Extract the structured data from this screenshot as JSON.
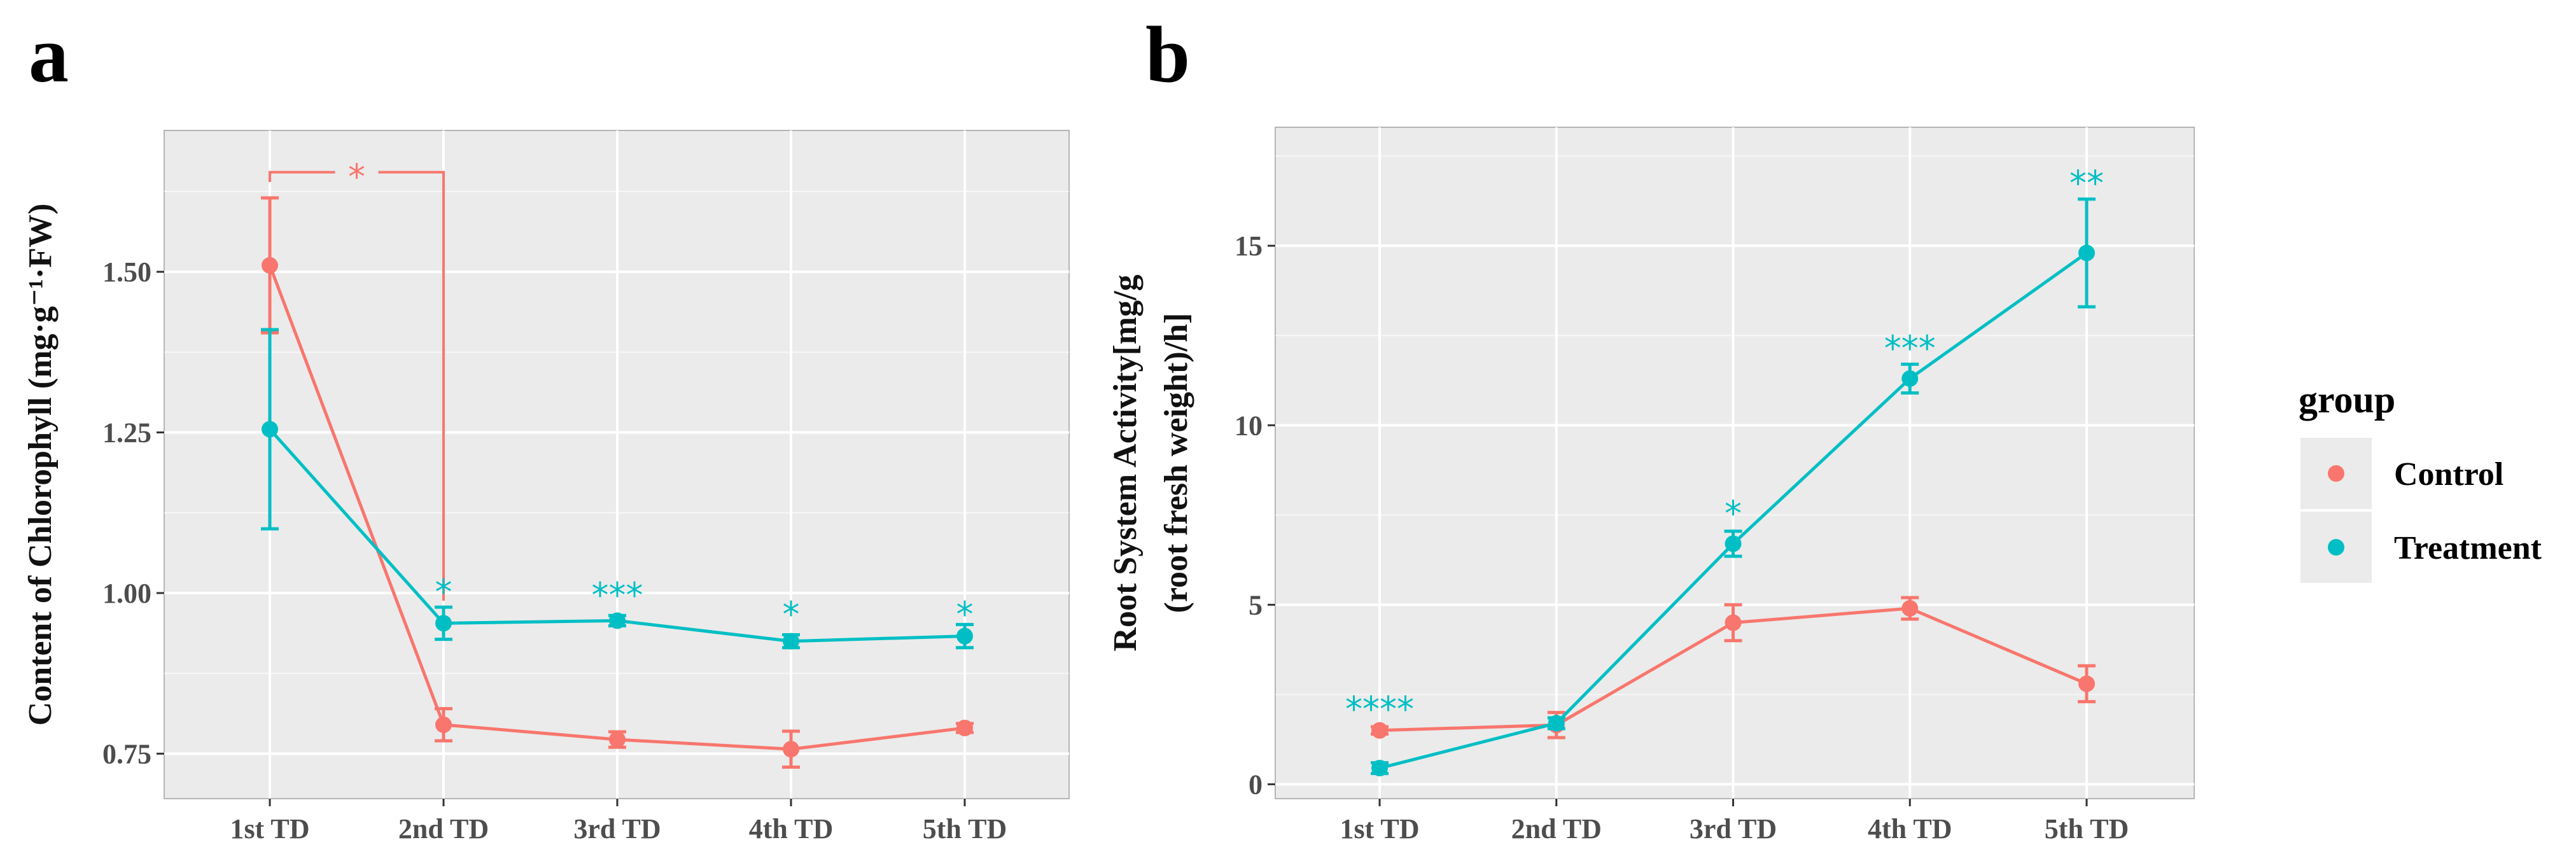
{
  "colors": {
    "control": "#F8766D",
    "treatment": "#00BFC4",
    "panel_bg": "#EBEBEB",
    "grid_major": "#FFFFFF",
    "tick_text": "#4D4D4D"
  },
  "legend": {
    "title": "group",
    "items": [
      {
        "label": "Control",
        "color": "#F8766D"
      },
      {
        "label": "Treatment",
        "color": "#00BFC4"
      }
    ]
  },
  "chart_data": [
    {
      "panel_label": "a",
      "type": "line",
      "categories": [
        "1st TD",
        "2nd TD",
        "3rd TD",
        "4th TD",
        "5th TD"
      ],
      "ylabel": "Content of Chlorophyll (mg·g⁻¹·FW)",
      "xlabel": "",
      "ylim": [
        0.68,
        1.72
      ],
      "yticks": [
        0.75,
        1.0,
        1.25,
        1.5
      ],
      "ytick_labels": [
        "0.75",
        "1.00",
        "1.25",
        "1.50"
      ],
      "grid": true,
      "series": [
        {
          "name": "Control",
          "values": [
            1.51,
            0.795,
            0.772,
            0.757,
            0.79
          ],
          "errors": [
            0.105,
            0.025,
            0.012,
            0.028,
            0.007
          ]
        },
        {
          "name": "Treatment",
          "values": [
            1.255,
            0.953,
            0.957,
            0.925,
            0.933
          ],
          "errors": [
            0.155,
            0.025,
            0.008,
            0.01,
            0.018
          ]
        }
      ],
      "annotations": [
        {
          "text": "*",
          "type": "bracket",
          "series": "Control",
          "from_index": 0,
          "to_index": 1,
          "y": 1.655
        },
        {
          "text": "*",
          "series": "Treatment",
          "index": 1,
          "y": 1.005
        },
        {
          "text": "***",
          "series": "Treatment",
          "index": 2,
          "y": 1.0
        },
        {
          "text": "*",
          "series": "Treatment",
          "index": 3,
          "y": 0.97
        },
        {
          "text": "*",
          "series": "Treatment",
          "index": 4,
          "y": 0.97
        }
      ]
    },
    {
      "panel_label": "b",
      "type": "line",
      "categories": [
        "1st TD",
        "2nd TD",
        "3rd TD",
        "4th TD",
        "5th TD"
      ],
      "ylabel": "Root System Activity[mg/g (root fresh weight)/h]",
      "ylabel_lines": [
        "Root System Activity[mg/g",
        "(root fresh weight)/h]"
      ],
      "xlabel": "",
      "ylim": [
        -0.4,
        18.3
      ],
      "yticks": [
        0,
        5,
        10,
        15
      ],
      "ytick_labels": [
        "0",
        "5",
        "10",
        "15"
      ],
      "grid": true,
      "series": [
        {
          "name": "Control",
          "values": [
            1.5,
            1.65,
            4.5,
            4.9,
            2.8
          ],
          "errors": [
            0.1,
            0.35,
            0.5,
            0.3,
            0.5
          ]
        },
        {
          "name": "Treatment",
          "values": [
            0.45,
            1.7,
            6.7,
            11.3,
            14.8
          ],
          "errors": [
            0.15,
            0.15,
            0.35,
            0.4,
            1.5
          ]
        }
      ],
      "annotations": [
        {
          "text": "****",
          "series": "Treatment",
          "index": 0,
          "y": 2.15
        },
        {
          "text": "*",
          "series": "Treatment",
          "index": 2,
          "y": 7.6
        },
        {
          "text": "***",
          "series": "Treatment",
          "index": 3,
          "y": 12.2
        },
        {
          "text": "**",
          "series": "Treatment",
          "index": 4,
          "y": 16.8
        }
      ]
    }
  ]
}
